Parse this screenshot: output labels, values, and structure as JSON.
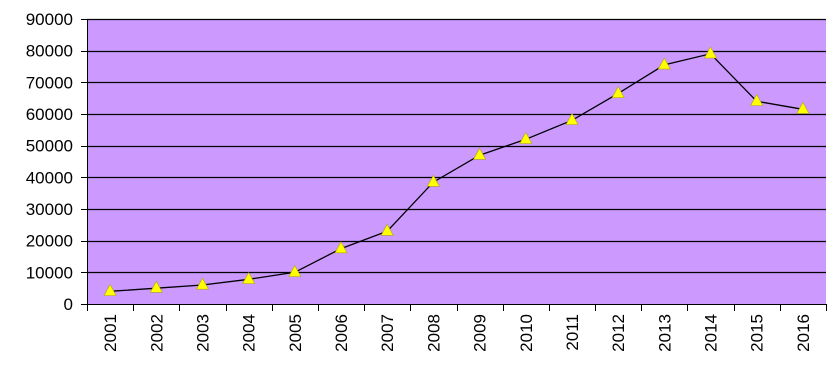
{
  "chart_data": {
    "type": "line",
    "title": "",
    "xlabel": "",
    "ylabel": "",
    "categories": [
      "2001",
      "2002",
      "2003",
      "2004",
      "2005",
      "2006",
      "2007",
      "2008",
      "2009",
      "2010",
      "2011",
      "2012",
      "2013",
      "2014",
      "2015",
      "2016"
    ],
    "series": [
      {
        "values": [
          4000,
          5000,
          6000,
          7800,
          10000,
          17500,
          23000,
          38500,
          47000,
          52000,
          58000,
          66500,
          75500,
          79000,
          64000,
          61500
        ],
        "line_color": "#000000",
        "marker": "triangle",
        "marker_color": "#ffff00"
      }
    ],
    "ylim": [
      0,
      90000
    ],
    "yticks": [
      0,
      10000,
      20000,
      30000,
      40000,
      50000,
      60000,
      70000,
      80000,
      90000
    ],
    "grid": true,
    "legend": "none",
    "plot_background": "#cc99ff",
    "grid_color": "#000000"
  }
}
